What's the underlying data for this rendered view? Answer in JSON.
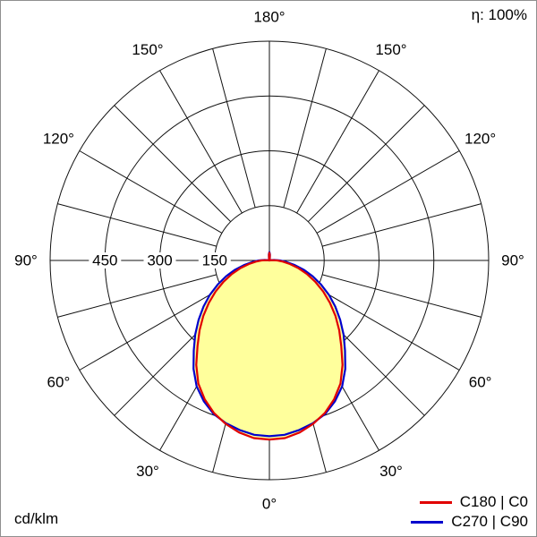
{
  "chart_data": {
    "type": "line",
    "coordinate_system": "polar-photometric",
    "title": "",
    "units": "cd/klm",
    "efficiency": "η: 100%",
    "angle_tick_degrees": [
      0,
      30,
      60,
      90,
      120,
      150,
      180
    ],
    "angle_tick_labels": [
      "0°",
      "30°",
      "60°",
      "90°",
      "120°",
      "150°",
      "180°"
    ],
    "radial_ticks": [
      150,
      300,
      450
    ],
    "radial_tick_labels": [
      "150",
      "300",
      "450"
    ],
    "radial_max": 600,
    "grid_color": "#111111",
    "fill_color": "#ffff9c",
    "legend_position": "bottom-right",
    "series": [
      {
        "name": "C180 | C0",
        "color": "#e10000",
        "gamma_step": 5,
        "gamma_start": 0,
        "values": [
          490,
          488,
          478,
          463,
          444,
          419,
          389,
          349,
          306,
          270,
          236,
          202,
          170,
          139,
          110,
          83,
          57,
          37,
          22,
          9,
          3,
          0,
          0,
          0,
          0,
          0,
          0,
          0,
          0,
          0,
          0,
          0,
          0,
          0,
          5,
          15,
          21
        ]
      },
      {
        "name": "C270 | C90",
        "color": "#0000cd",
        "gamma_step": 5,
        "gamma_start": 0,
        "values": [
          481,
          479,
          471,
          461,
          447,
          425,
          398,
          362,
          322,
          287,
          253,
          220,
          188,
          156,
          126,
          97,
          69,
          46,
          29,
          13,
          5,
          0,
          0,
          0,
          0,
          0,
          0,
          0,
          0,
          0,
          0,
          0,
          0,
          0,
          7,
          17,
          23
        ]
      }
    ]
  }
}
